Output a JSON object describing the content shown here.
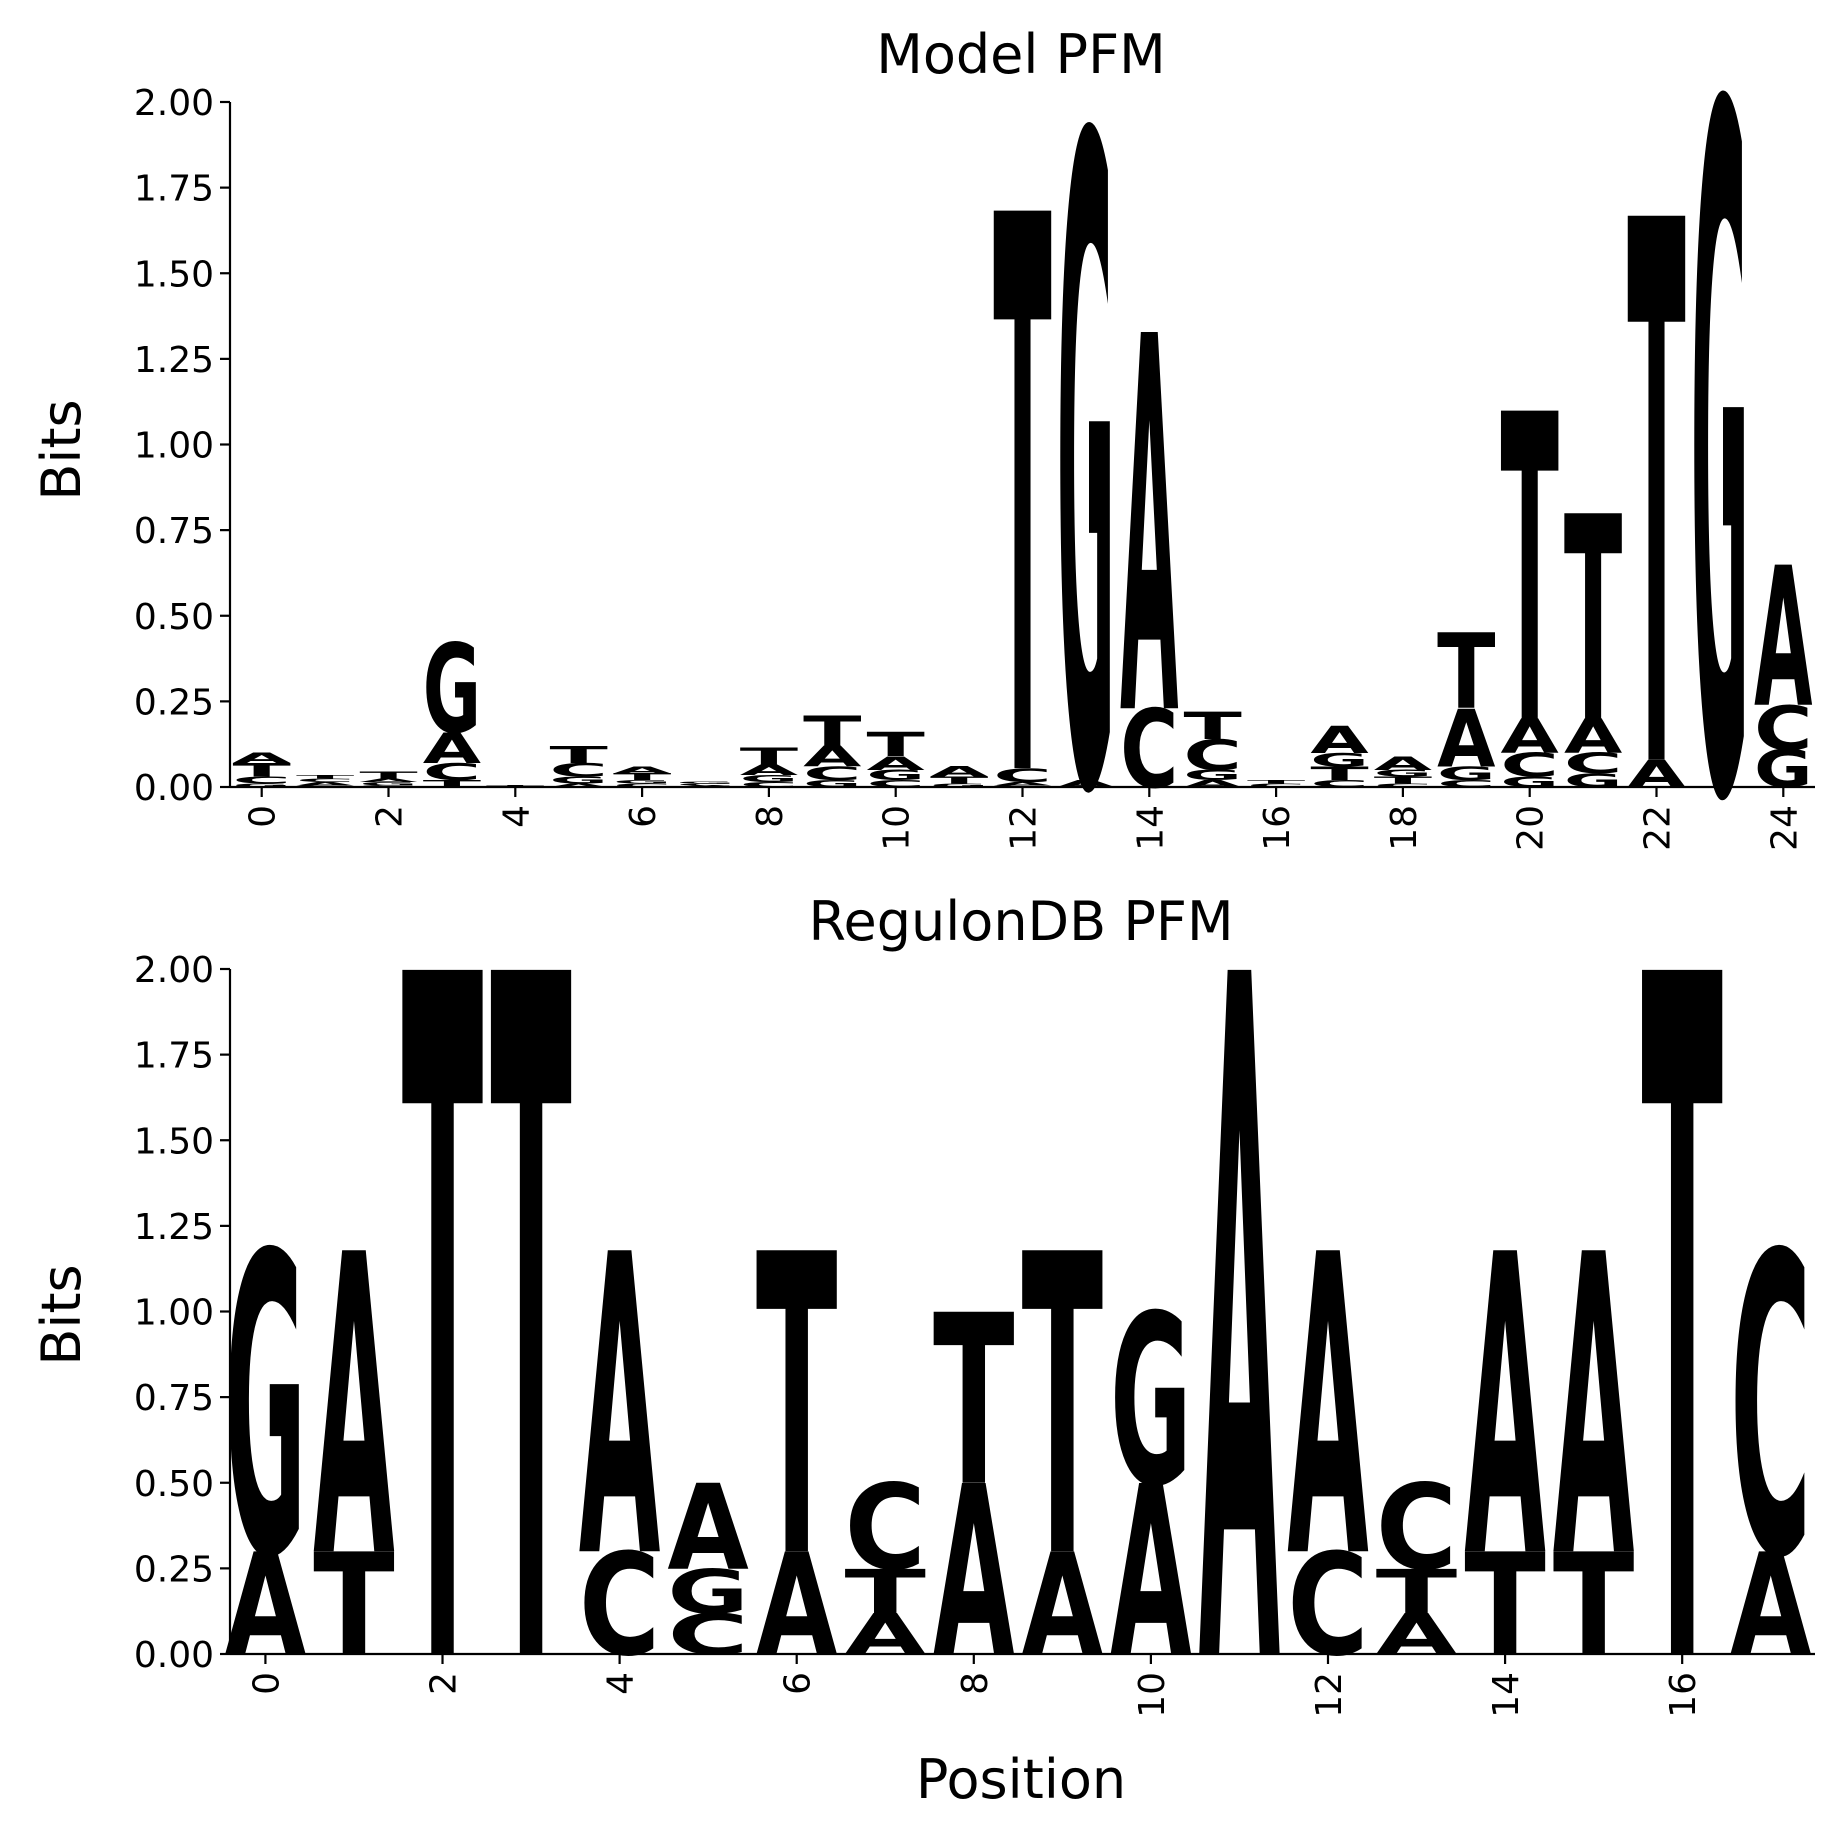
{
  "chart_data": [
    {
      "type": "sequence-logo",
      "title": "Model PFM",
      "xlabel": "",
      "ylabel": "Bits",
      "ylim": [
        0,
        2
      ],
      "yticks": [
        "0.00",
        "0.25",
        "0.50",
        "0.75",
        "1.00",
        "1.25",
        "1.50",
        "1.75",
        "2.00"
      ],
      "xticks": [
        0,
        2,
        4,
        6,
        8,
        10,
        12,
        14,
        16,
        18,
        20,
        22,
        24
      ],
      "positions": [
        {
          "pos": 0,
          "stack": [
            [
              "G",
              0.01
            ],
            [
              "C",
              0.02
            ],
            [
              "T",
              0.04
            ],
            [
              "A",
              0.03
            ]
          ]
        },
        {
          "pos": 1,
          "stack": [
            [
              "G",
              0.005
            ],
            [
              "A",
              0.01
            ],
            [
              "C",
              0.01
            ],
            [
              "T",
              0.01
            ]
          ]
        },
        {
          "pos": 2,
          "stack": [
            [
              "C",
              0.005
            ],
            [
              "G",
              0.01
            ],
            [
              "A",
              0.01
            ],
            [
              "T",
              0.02
            ]
          ]
        },
        {
          "pos": 3,
          "stack": [
            [
              "T",
              0.02
            ],
            [
              "C",
              0.05
            ],
            [
              "A",
              0.09
            ],
            [
              "G",
              0.26
            ]
          ]
        },
        {
          "pos": 4,
          "stack": [
            [
              "T",
              0.005
            ]
          ]
        },
        {
          "pos": 5,
          "stack": [
            [
              "A",
              0.01
            ],
            [
              "G",
              0.02
            ],
            [
              "C",
              0.04
            ],
            [
              "T",
              0.05
            ]
          ]
        },
        {
          "pos": 6,
          "stack": [
            [
              "C",
              0.01
            ],
            [
              "G",
              0.01
            ],
            [
              "T",
              0.02
            ],
            [
              "A",
              0.02
            ]
          ]
        },
        {
          "pos": 7,
          "stack": [
            [
              "A",
              0.005
            ],
            [
              "C",
              0.005
            ],
            [
              "G",
              0.005
            ]
          ]
        },
        {
          "pos": 8,
          "stack": [
            [
              "C",
              0.015
            ],
            [
              "G",
              0.02
            ],
            [
              "A",
              0.03
            ],
            [
              "T",
              0.05
            ]
          ]
        },
        {
          "pos": 9,
          "stack": [
            [
              "G",
              0.02
            ],
            [
              "C",
              0.04
            ],
            [
              "A",
              0.06
            ],
            [
              "T",
              0.09
            ]
          ]
        },
        {
          "pos": 10,
          "stack": [
            [
              "C",
              0.02
            ],
            [
              "G",
              0.03
            ],
            [
              "A",
              0.04
            ],
            [
              "T",
              0.07
            ]
          ]
        },
        {
          "pos": 11,
          "stack": [
            [
              "G",
              0.01
            ],
            [
              "T",
              0.02
            ],
            [
              "A",
              0.03
            ]
          ]
        },
        {
          "pos": 12,
          "stack": [
            [
              "G",
              0.005
            ],
            [
              "A",
              0.01
            ],
            [
              "C",
              0.04
            ],
            [
              "T",
              1.63
            ]
          ]
        },
        {
          "pos": 13,
          "stack": [
            [
              "A",
              0.02
            ],
            [
              "G",
              1.89
            ]
          ]
        },
        {
          "pos": 14,
          "stack": [
            [
              "C",
              0.23
            ],
            [
              "A",
              1.1
            ]
          ]
        },
        {
          "pos": 15,
          "stack": [
            [
              "A",
              0.02
            ],
            [
              "G",
              0.03
            ],
            [
              "C",
              0.09
            ],
            [
              "T",
              0.08
            ]
          ]
        },
        {
          "pos": 16,
          "stack": [
            [
              "C",
              0.01
            ],
            [
              "T",
              0.01
            ]
          ]
        },
        {
          "pos": 17,
          "stack": [
            [
              "C",
              0.02
            ],
            [
              "T",
              0.04
            ],
            [
              "G",
              0.04
            ],
            [
              "A",
              0.08
            ]
          ]
        },
        {
          "pos": 18,
          "stack": [
            [
              "C",
              0.01
            ],
            [
              "T",
              0.02
            ],
            [
              "G",
              0.02
            ],
            [
              "A",
              0.04
            ]
          ]
        },
        {
          "pos": 19,
          "stack": [
            [
              "C",
              0.02
            ],
            [
              "G",
              0.04
            ],
            [
              "A",
              0.17
            ],
            [
              "T",
              0.22
            ]
          ]
        },
        {
          "pos": 20,
          "stack": [
            [
              "G",
              0.03
            ],
            [
              "C",
              0.07
            ],
            [
              "A",
              0.1
            ],
            [
              "T",
              0.9
            ]
          ]
        },
        {
          "pos": 21,
          "stack": [
            [
              "G",
              0.04
            ],
            [
              "C",
              0.06
            ],
            [
              "A",
              0.1
            ],
            [
              "T",
              0.6
            ]
          ]
        },
        {
          "pos": 22,
          "stack": [
            [
              "A",
              0.08
            ],
            [
              "T",
              1.59
            ]
          ]
        },
        {
          "pos": 23,
          "stack": [
            [
              "G",
              2.0
            ]
          ]
        },
        {
          "pos": 24,
          "stack": [
            [
              "G",
              0.11
            ],
            [
              "C",
              0.13
            ],
            [
              "A",
              0.41
            ]
          ]
        }
      ]
    },
    {
      "type": "sequence-logo",
      "title": "RegulonDB PFM",
      "xlabel": "Position",
      "ylabel": "Bits",
      "ylim": [
        0,
        2
      ],
      "yticks": [
        "0.00",
        "0.25",
        "0.50",
        "0.75",
        "1.00",
        "1.25",
        "1.50",
        "1.75",
        "2.00"
      ],
      "xticks": [
        0,
        2,
        4,
        6,
        8,
        10,
        12,
        14,
        16
      ],
      "positions": [
        {
          "pos": 0,
          "stack": [
            [
              "A",
              0.3
            ],
            [
              "G",
              0.88
            ]
          ]
        },
        {
          "pos": 1,
          "stack": [
            [
              "T",
              0.3
            ],
            [
              "A",
              0.88
            ]
          ]
        },
        {
          "pos": 2,
          "stack": [
            [
              "T",
              2.0
            ]
          ]
        },
        {
          "pos": 3,
          "stack": [
            [
              "T",
              2.0
            ]
          ]
        },
        {
          "pos": 4,
          "stack": [
            [
              "C",
              0.3
            ],
            [
              "A",
              0.88
            ]
          ]
        },
        {
          "pos": 5,
          "stack": [
            [
              "C",
              0.12
            ],
            [
              "G",
              0.13
            ],
            [
              "A",
              0.25
            ]
          ]
        },
        {
          "pos": 6,
          "stack": [
            [
              "A",
              0.3
            ],
            [
              "T",
              0.88
            ]
          ]
        },
        {
          "pos": 7,
          "stack": [
            [
              "A",
              0.12
            ],
            [
              "T",
              0.13
            ],
            [
              "C",
              0.25
            ]
          ]
        },
        {
          "pos": 8,
          "stack": [
            [
              "A",
              0.5
            ],
            [
              "T",
              0.5
            ]
          ]
        },
        {
          "pos": 9,
          "stack": [
            [
              "A",
              0.3
            ],
            [
              "T",
              0.88
            ]
          ]
        },
        {
          "pos": 10,
          "stack": [
            [
              "A",
              0.5
            ],
            [
              "G",
              0.5
            ]
          ]
        },
        {
          "pos": 11,
          "stack": [
            [
              "A",
              2.0
            ]
          ]
        },
        {
          "pos": 12,
          "stack": [
            [
              "C",
              0.3
            ],
            [
              "A",
              0.88
            ]
          ]
        },
        {
          "pos": 13,
          "stack": [
            [
              "A",
              0.12
            ],
            [
              "T",
              0.13
            ],
            [
              "C",
              0.25
            ]
          ]
        },
        {
          "pos": 14,
          "stack": [
            [
              "T",
              0.3
            ],
            [
              "A",
              0.88
            ]
          ]
        },
        {
          "pos": 15,
          "stack": [
            [
              "T",
              0.3
            ],
            [
              "A",
              0.88
            ]
          ]
        },
        {
          "pos": 16,
          "stack": [
            [
              "T",
              2.0
            ]
          ]
        },
        {
          "pos": 17,
          "stack": [
            [
              "A",
              0.3
            ],
            [
              "C",
              0.88
            ]
          ]
        }
      ]
    }
  ],
  "colors": {
    "A": "#ff0000",
    "C": "#0000ff",
    "G": "#ffa500",
    "T": "#008000"
  }
}
